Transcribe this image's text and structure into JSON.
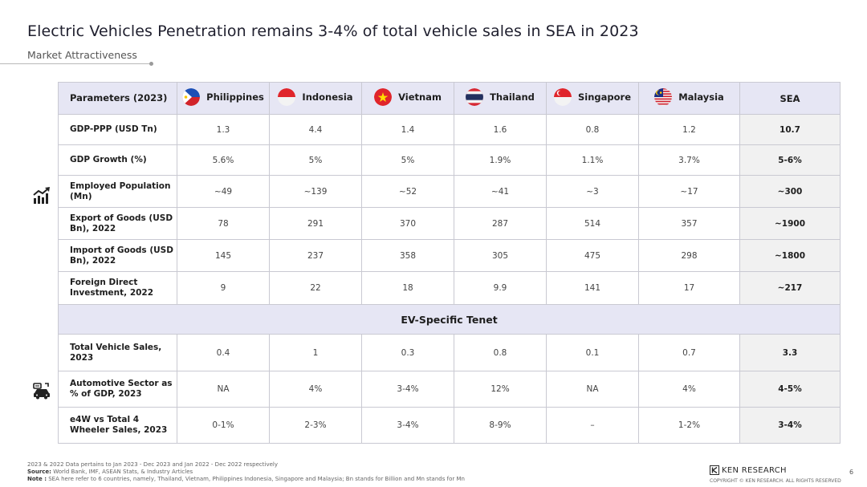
{
  "header": {
    "title": "Electric Vehicles Penetration remains 3-4% of total vehicle sales in SEA in 2023",
    "subtitle": "Market Attractiveness"
  },
  "table": {
    "param_header": "Parameters (2023)",
    "countries": [
      {
        "name": "Philippines",
        "flag_icon": "philippines-flag-icon"
      },
      {
        "name": "Indonesia",
        "flag_icon": "indonesia-flag-icon"
      },
      {
        "name": "Vietnam",
        "flag_icon": "vietnam-flag-icon"
      },
      {
        "name": "Thailand",
        "flag_icon": "thailand-flag-icon"
      },
      {
        "name": "Singapore",
        "flag_icon": "singapore-flag-icon"
      },
      {
        "name": "Malaysia",
        "flag_icon": "malaysia-flag-icon"
      }
    ],
    "sea_header": "SEA",
    "macro_rows": [
      {
        "label": "GDP-PPP (USD Tn)",
        "values": [
          "1.3",
          "4.4",
          "1.4",
          "1.6",
          "0.8",
          "1.2"
        ],
        "sea": "10.7"
      },
      {
        "label": "GDP Growth (%)",
        "values": [
          "5.6%",
          "5%",
          "5%",
          "1.9%",
          "1.1%",
          "3.7%"
        ],
        "sea": "5-6%"
      },
      {
        "label": "Employed Population (Mn)",
        "values": [
          "~49",
          "~139",
          "~52",
          "~41",
          "~3",
          "~17"
        ],
        "sea": "~300"
      },
      {
        "label": "Export of Goods (USD Bn), 2022",
        "values": [
          "78",
          "291",
          "370",
          "287",
          "514",
          "357"
        ],
        "sea": "~1900"
      },
      {
        "label": "Import of Goods (USD Bn), 2022",
        "values": [
          "145",
          "237",
          "358",
          "305",
          "475",
          "298"
        ],
        "sea": "~1800"
      },
      {
        "label": "Foreign Direct Investment, 2022",
        "values": [
          "9",
          "22",
          "18",
          "9.9",
          "141",
          "17"
        ],
        "sea": "~217"
      }
    ],
    "ev_section_title": "EV-Specific Tenet",
    "ev_rows": [
      {
        "label": "Total Vehicle Sales, 2023",
        "values": [
          "0.4",
          "1",
          "0.3",
          "0.8",
          "0.1",
          "0.7"
        ],
        "sea": "3.3"
      },
      {
        "label": "Automotive Sector as % of GDP, 2023",
        "values": [
          "NA",
          "4%",
          "3-4%",
          "12%",
          "NA",
          "4%"
        ],
        "sea": "4-5%"
      },
      {
        "label": "e4W vs Total 4 Wheeler Sales, 2023",
        "values": [
          "0-1%",
          "2-3%",
          "3-4%",
          "8-9%",
          "–",
          "1-2%"
        ],
        "sea": "3-4%"
      }
    ]
  },
  "icons": {
    "macro": "growth-chart-icon",
    "ev": "car-dashboard-icon"
  },
  "footer": {
    "note1": "2023 & 2022 Data pertains to Jan 2023 - Dec 2023 and Jan 2022 - Dec 2022 respectively",
    "source_label": "Source:",
    "source_text": "World Bank, IMF, ASEAN Stats, & Industry Articles",
    "note_label": "Note :",
    "note_text": "SEA here refer to 6 countries, namely, Thailand, Vietnam, Philippines Indonesia, Singapore and Malaysia; Bn stands for Billion and Mn stands for Mn",
    "logo_text": "KEN RESEARCH",
    "copyright": "COPYRIGHT © KEN RESEARCH. ALL RIGHTS RESERVED",
    "page_number": "6"
  }
}
